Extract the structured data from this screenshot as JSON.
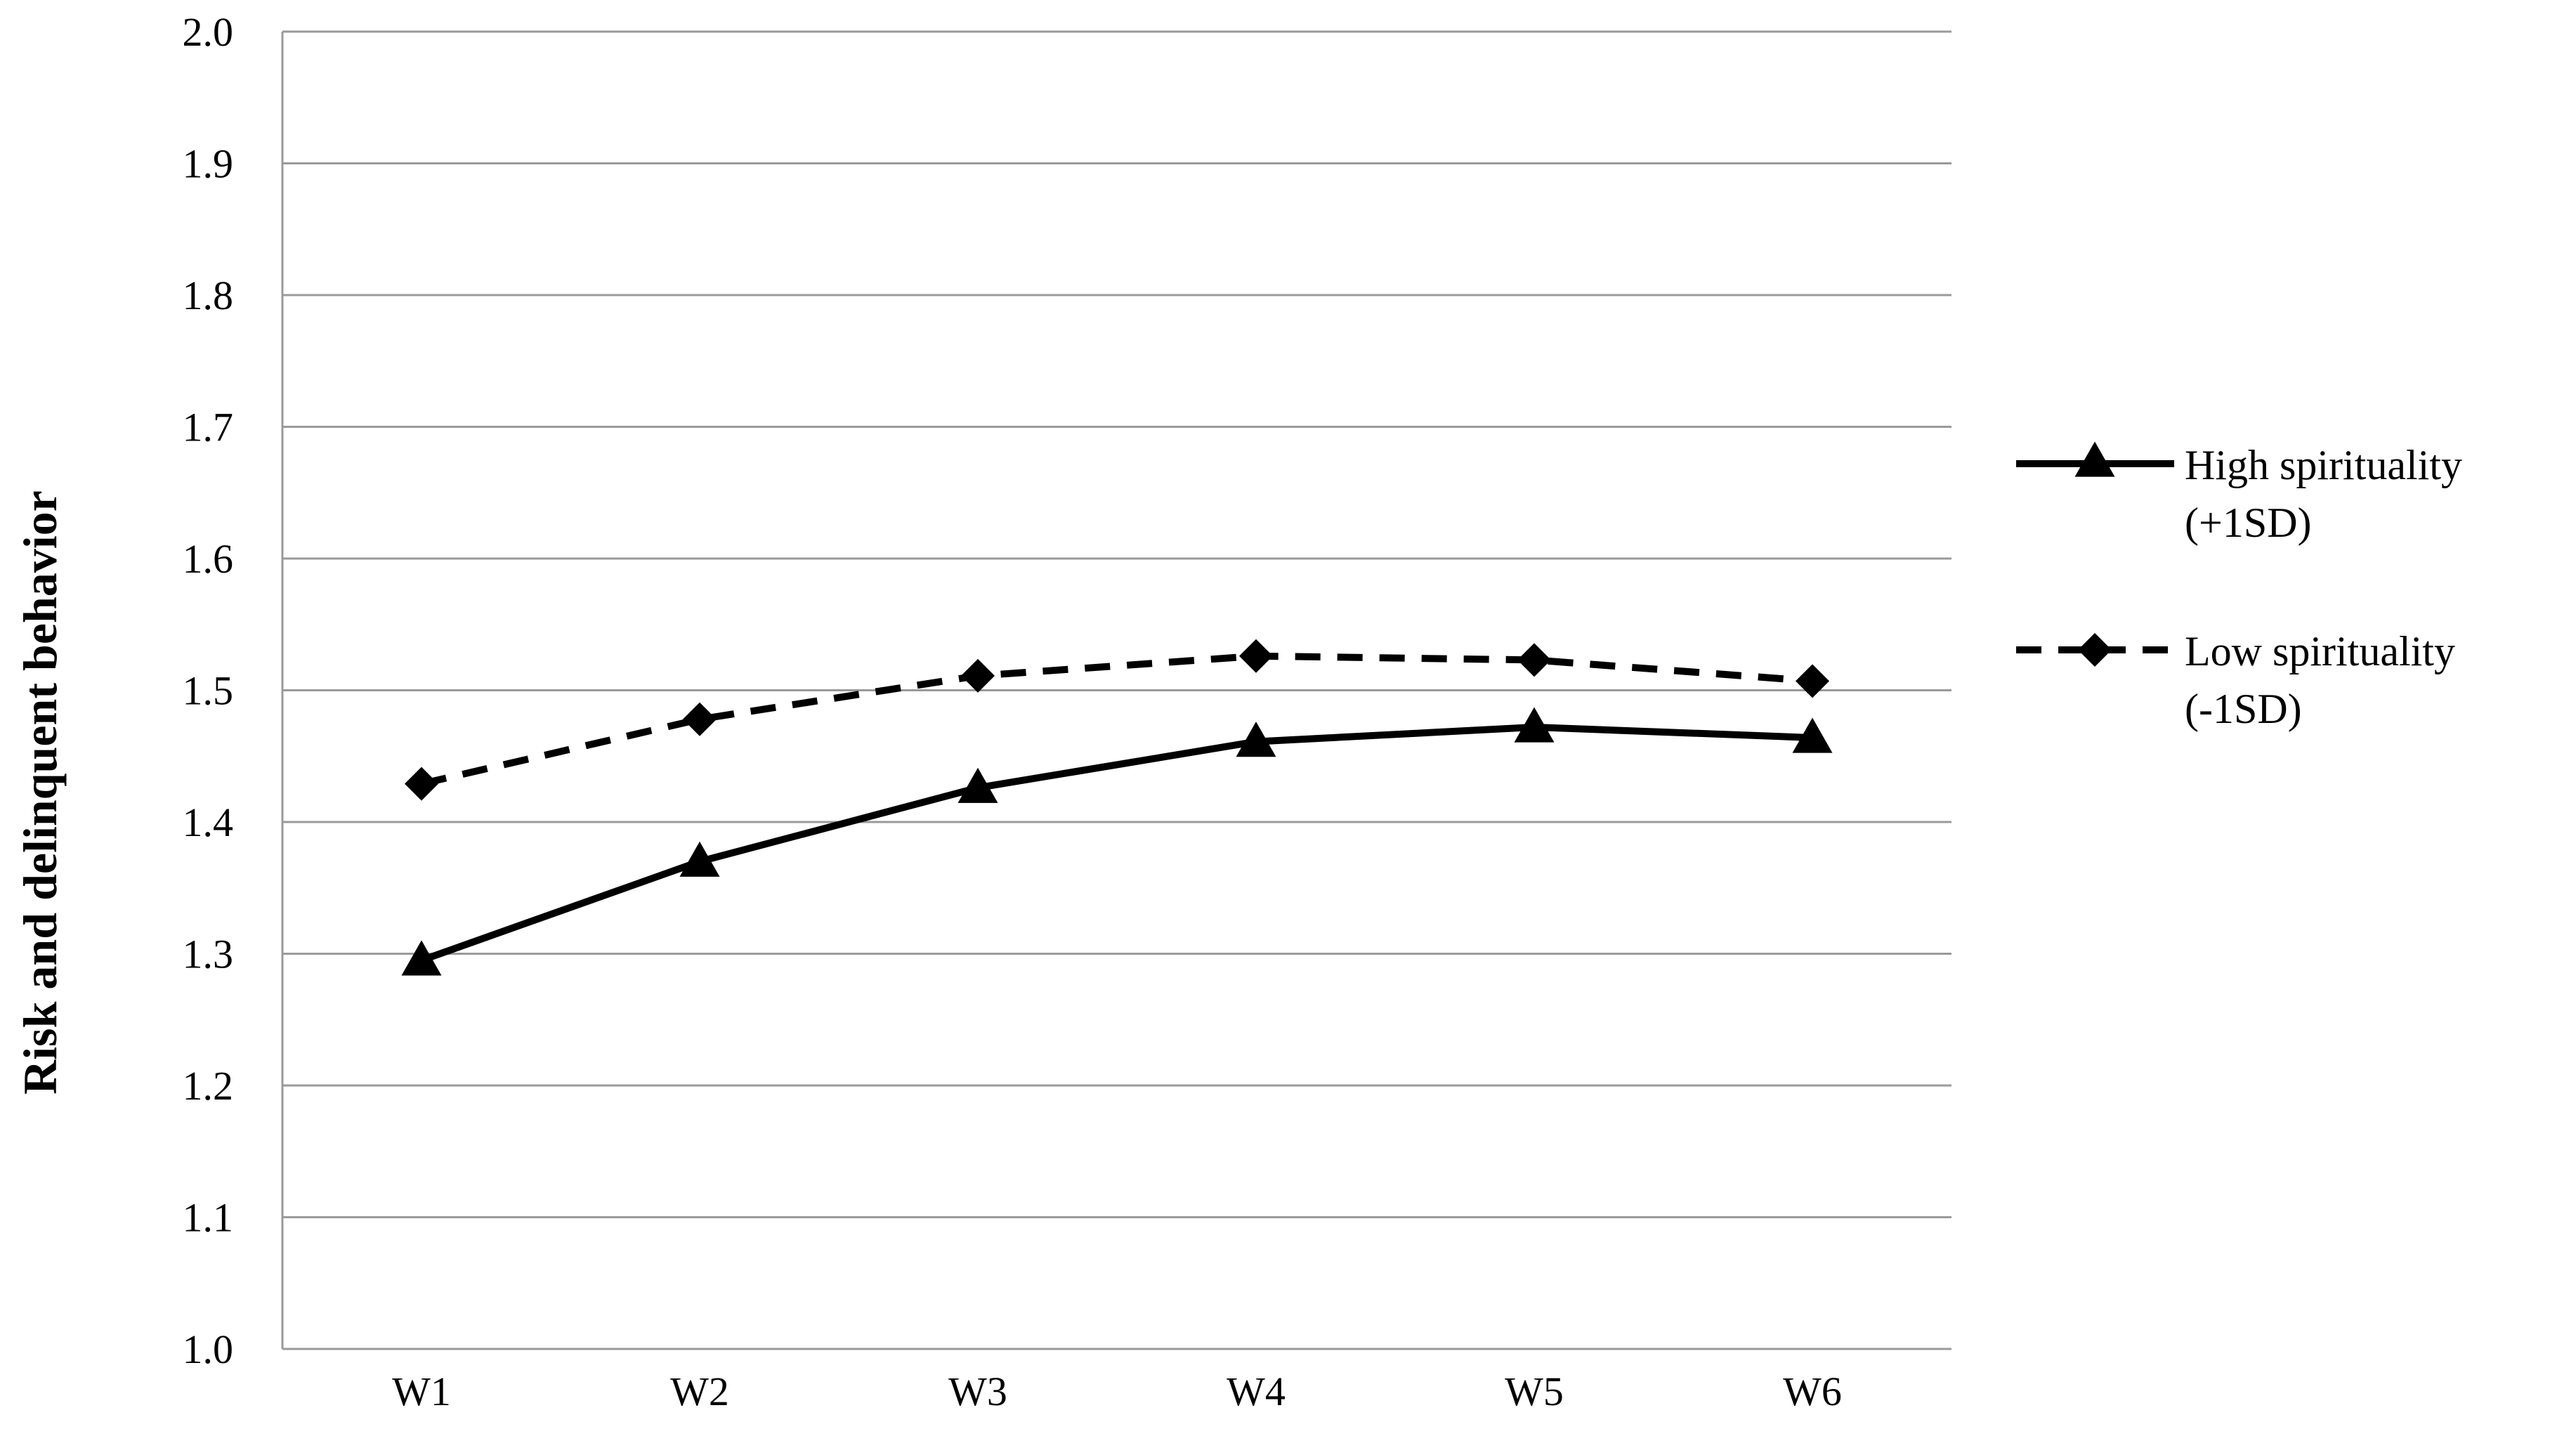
{
  "chart_data": {
    "type": "line",
    "title": "",
    "xlabel": "",
    "ylabel": "Risk and delinquent behavior",
    "categories": [
      "W1",
      "W2",
      "W3",
      "W4",
      "W5",
      "W6"
    ],
    "ylim": [
      1.0,
      2.0
    ],
    "yticks": [
      "1.0",
      "1.1",
      "1.2",
      "1.3",
      "1.4",
      "1.5",
      "1.6",
      "1.7",
      "1.8",
      "1.9",
      "2.0"
    ],
    "grid": true,
    "legend_position": "right",
    "series": [
      {
        "name": "High spirituality (+1SD)",
        "legend_lines": [
          "High spirituality",
          "(+1SD)"
        ],
        "values": [
          1.295,
          1.37,
          1.426,
          1.461,
          1.472,
          1.464
        ],
        "marker": "triangle",
        "line_style": "solid",
        "color": "#000000"
      },
      {
        "name": "Low spirituality (-1SD)",
        "legend_lines": [
          "Low spirituality",
          "(-1SD)"
        ],
        "values": [
          1.429,
          1.478,
          1.511,
          1.526,
          1.523,
          1.507
        ],
        "marker": "diamond",
        "line_style": "dashed",
        "color": "#000000"
      }
    ]
  }
}
